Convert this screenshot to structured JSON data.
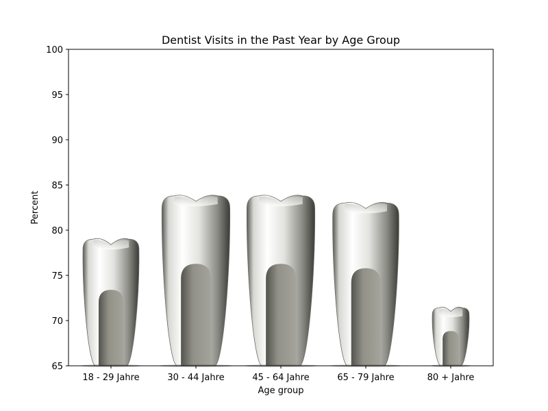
{
  "chart_data": {
    "type": "bar",
    "title": "Dentist Visits in the Past Year by Age Group",
    "xlabel": "Age group",
    "ylabel": "Percent",
    "categories": [
      "18 - 29 Jahre",
      "30 - 44 Jahre",
      "45 - 64 Jahre",
      "65 - 79 Jahre",
      "80 + Jahre"
    ],
    "values": [
      79,
      83.8,
      83.8,
      83,
      71.4
    ],
    "ylim": [
      65,
      100
    ],
    "yticks": [
      65,
      70,
      75,
      80,
      85,
      90,
      95,
      100
    ],
    "grid": false,
    "legend": "none",
    "mark_style": "tooth-shaped bars",
    "colors": {
      "tooth_light": "#f4f4f2",
      "tooth_mid": "#b9b9b4",
      "tooth_dark": "#3c3c38",
      "root_fill": "#8f8f86"
    }
  }
}
